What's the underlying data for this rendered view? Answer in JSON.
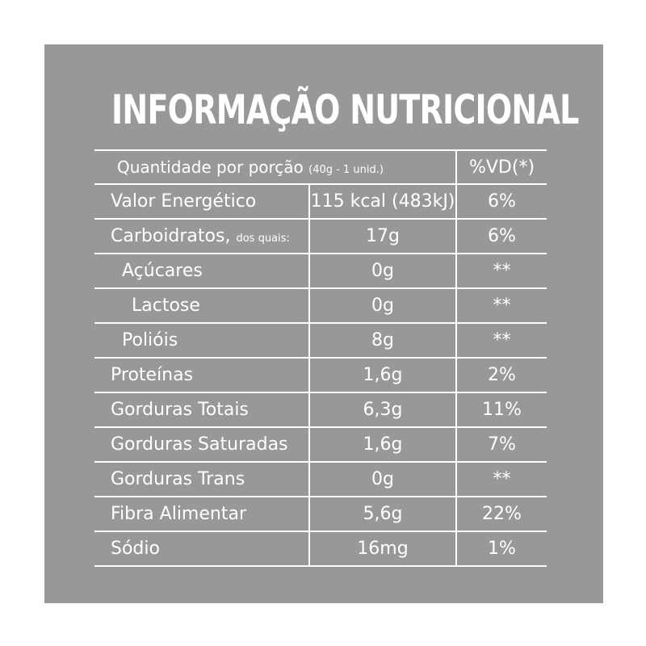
{
  "title": "INFORMAÇÃO NUTRICIONAL",
  "header": {
    "portion_label": "Quantidade por porção",
    "portion_detail": "(40g - 1 unid.)",
    "vd_label": "%VD(*)"
  },
  "rows": [
    {
      "name": "Valor Energético",
      "name_suffix": "",
      "qty": "115 kcal (483kJ)",
      "vd": "6%"
    },
    {
      "name": "Carboidratos,",
      "name_suffix": "dos quais:",
      "qty": "17g",
      "vd": "6%"
    },
    {
      "name": "Açúcares",
      "name_suffix": "",
      "qty": "0g",
      "vd": "**"
    },
    {
      "name": "Lactose",
      "name_suffix": "",
      "qty": "0g",
      "vd": "**"
    },
    {
      "name": "Polióis",
      "name_suffix": "",
      "qty": "8g",
      "vd": "**"
    },
    {
      "name": "Proteínas",
      "name_suffix": "",
      "qty": "1,6g",
      "vd": "2%"
    },
    {
      "name": "Gorduras Totais",
      "name_suffix": "",
      "qty": "6,3g",
      "vd": "11%"
    },
    {
      "name": "Gorduras Saturadas",
      "name_suffix": "",
      "qty": "1,6g",
      "vd": "7%"
    },
    {
      "name": "Gorduras Trans",
      "name_suffix": "",
      "qty": "0g",
      "vd": "**"
    },
    {
      "name": "Fibra Alimentar",
      "name_suffix": "",
      "qty": "5,6g",
      "vd": "22%"
    },
    {
      "name": "Sódio",
      "name_suffix": "",
      "qty": "16mg",
      "vd": "1%"
    }
  ],
  "colors": {
    "background": "#989898",
    "text": "#ffffff"
  }
}
